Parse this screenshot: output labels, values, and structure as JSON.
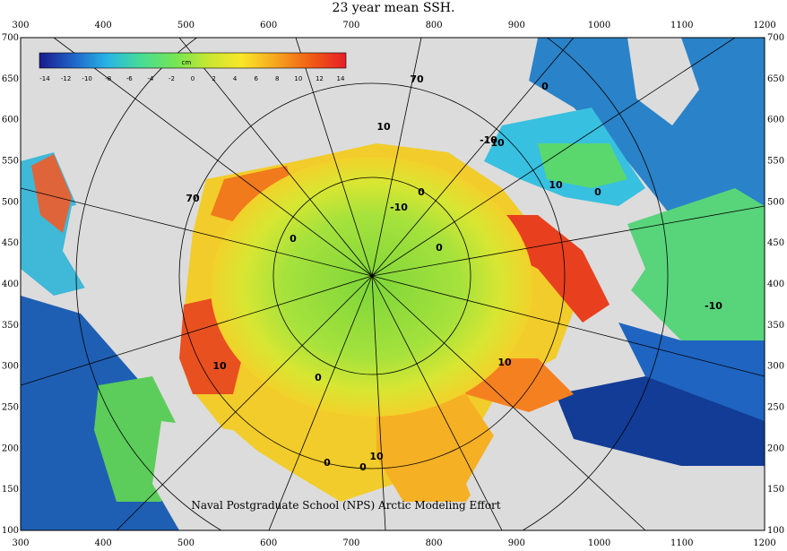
{
  "title": "23 year mean SSH.",
  "colorbar": {
    "unit": "cm",
    "ticks": [
      "-14",
      "-12",
      "-10",
      "-8",
      "-6",
      "-4",
      "-2",
      "0",
      "2",
      "4",
      "6",
      "8",
      "10",
      "12",
      "14"
    ],
    "range": [
      -14,
      14
    ]
  },
  "x_ticks": [
    "300",
    "400",
    "500",
    "600",
    "700",
    "800",
    "900",
    "1000",
    "1100",
    "1200"
  ],
  "y_ticks": [
    "700",
    "650",
    "600",
    "550",
    "500",
    "450",
    "400",
    "350",
    "300",
    "250",
    "200",
    "150",
    "100"
  ],
  "contour_labels": [
    "70",
    "10",
    "0",
    "0",
    "-10",
    "0",
    "10",
    "0",
    "0",
    "10",
    "-10",
    "10",
    "10",
    "-10",
    "70",
    "10",
    "0",
    "0",
    "0"
  ],
  "credit": "Naval Postgraduate School (NPS) Arctic Modeling Effort",
  "colors": {
    "land": "#dcdcdc",
    "ocean_deep_blue": "#1e5fb4",
    "arctic_green": "#9ee03c",
    "shelf_yellow": "#f5dc28",
    "shelf_orange": "#f08c1e",
    "shelf_red": "#d23214",
    "colorbar_stops": [
      "#1a1a8c",
      "#1e64c8",
      "#28b4e6",
      "#46dc96",
      "#78e650",
      "#c8e632",
      "#fae628",
      "#f5a01e",
      "#f05a14",
      "#e61e28"
    ]
  }
}
